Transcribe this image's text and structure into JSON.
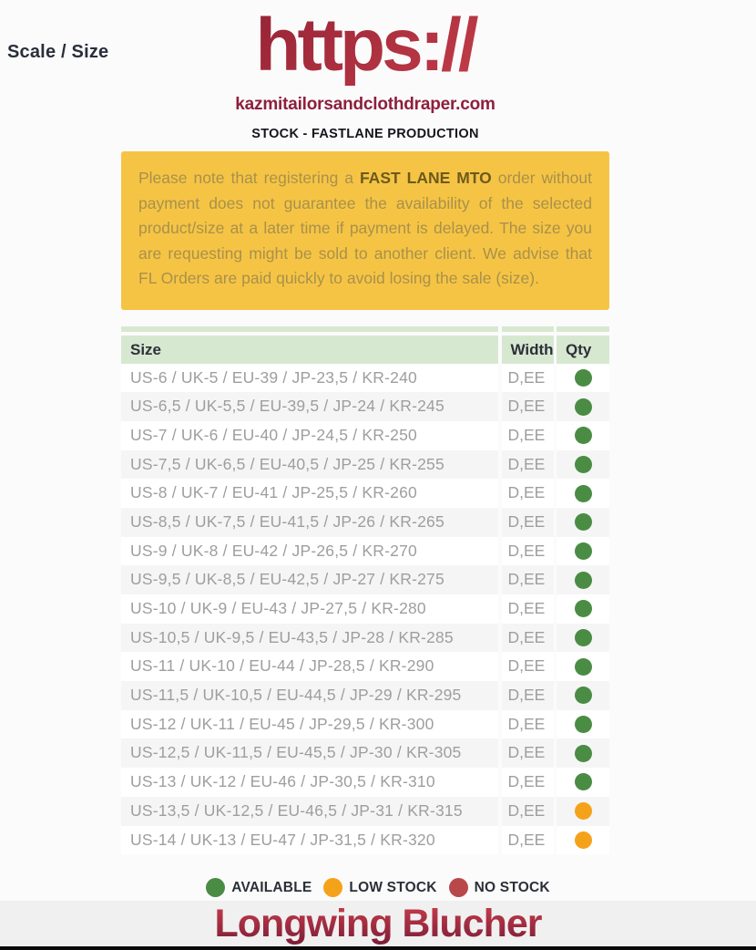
{
  "header": {
    "scale_label": "Scale / Size",
    "logo_text": "https://",
    "domain": "kazmitailorsandclothdraper.com",
    "subtitle": "STOCK - FASTLANE PRODUCTION"
  },
  "notice": {
    "prefix": "Please note that registering a ",
    "highlight": "FAST LANE MTO",
    "suffix": " order without payment does not guarantee the availability of the selected product/size at a later time if payment is delayed. The size you are requesting might be sold to another client. We advise that FL Orders are paid quickly to avoid losing the sale (size)."
  },
  "table": {
    "headers": [
      "Size",
      "Width",
      "Qty"
    ],
    "rows": [
      {
        "size": "US-6 / UK-5 / EU-39 / JP-23,5 / KR-240",
        "width": "D,EE",
        "stock": "available"
      },
      {
        "size": "US-6,5 / UK-5,5 / EU-39,5 / JP-24 / KR-245",
        "width": "D,EE",
        "stock": "available"
      },
      {
        "size": "US-7 / UK-6 / EU-40 / JP-24,5 / KR-250",
        "width": "D,EE",
        "stock": "available"
      },
      {
        "size": "US-7,5 / UK-6,5 / EU-40,5 / JP-25 / KR-255",
        "width": "D,EE",
        "stock": "available"
      },
      {
        "size": "US-8 / UK-7 / EU-41 / JP-25,5 / KR-260",
        "width": "D,EE",
        "stock": "available"
      },
      {
        "size": "US-8,5 / UK-7,5 / EU-41,5 / JP-26 / KR-265",
        "width": "D,EE",
        "stock": "available"
      },
      {
        "size": "US-9 / UK-8 / EU-42 / JP-26,5 / KR-270",
        "width": "D,EE",
        "stock": "available"
      },
      {
        "size": "US-9,5 / UK-8,5 / EU-42,5 / JP-27 / KR-275",
        "width": "D,EE",
        "stock": "available"
      },
      {
        "size": "US-10 / UK-9 / EU-43 / JP-27,5 / KR-280",
        "width": "D,EE",
        "stock": "available"
      },
      {
        "size": "US-10,5 / UK-9,5 / EU-43,5 / JP-28 / KR-285",
        "width": "D,EE",
        "stock": "available"
      },
      {
        "size": "US-11 / UK-10 / EU-44 / JP-28,5 / KR-290",
        "width": "D,EE",
        "stock": "available"
      },
      {
        "size": "US-11,5 / UK-10,5 / EU-44,5 / JP-29 / KR-295",
        "width": "D,EE",
        "stock": "available"
      },
      {
        "size": "US-12 / UK-11 / EU-45 / JP-29,5 / KR-300",
        "width": "D,EE",
        "stock": "available"
      },
      {
        "size": "US-12,5 / UK-11,5 / EU-45,5 / JP-30 / KR-305",
        "width": "D,EE",
        "stock": "available"
      },
      {
        "size": "US-13 / UK-12 / EU-46 / JP-30,5 / KR-310",
        "width": "D,EE",
        "stock": "available"
      },
      {
        "size": "US-13,5 / UK-12,5 / EU-46,5 / JP-31 / KR-315",
        "width": "D,EE",
        "stock": "low_stock"
      },
      {
        "size": "US-14 / UK-13 / EU-47 / JP-31,5 / KR-320",
        "width": "D,EE",
        "stock": "low_stock"
      }
    ]
  },
  "legend": [
    {
      "label": "AVAILABLE",
      "status": "available"
    },
    {
      "label": "LOW STOCK",
      "status": "low_stock"
    },
    {
      "label": "NO STOCK",
      "status": "no_stock"
    }
  ],
  "footer": {
    "product_title": "Longwing Blucher"
  },
  "colors": {
    "status_available": "#4a8c44",
    "status_low_stock": "#f5a21b",
    "status_no_stock": "#b8484a",
    "notice_bg": "#f6c445",
    "notice_text": "#a8914a",
    "notice_highlight": "#6d5a1d",
    "table_header_bg": "#d7e8d0",
    "brand_red_dark": "#8e1f33",
    "brand_red": "#c9404b",
    "domain_red": "#8e1f3c"
  }
}
